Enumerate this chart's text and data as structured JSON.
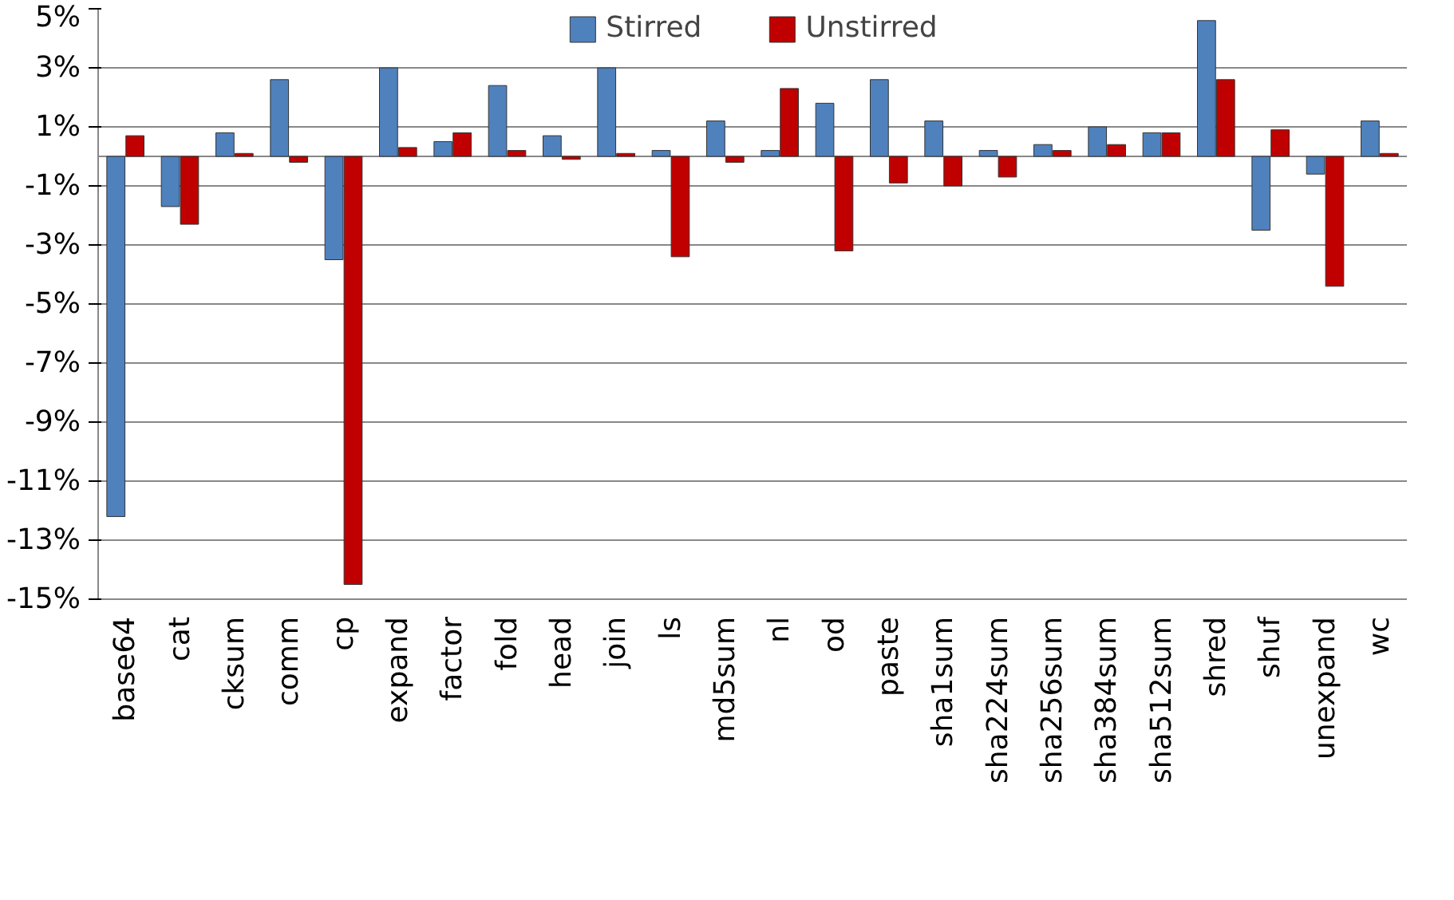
{
  "chart_data": {
    "type": "bar",
    "categories": [
      "base64",
      "cat",
      "cksum",
      "comm",
      "cp",
      "expand",
      "factor",
      "fold",
      "head",
      "join",
      "ls",
      "md5sum",
      "nl",
      "od",
      "paste",
      "sha1sum",
      "sha224sum",
      "sha256sum",
      "sha384sum",
      "sha512sum",
      "shred",
      "shuf",
      "unexpand",
      "wc"
    ],
    "series": [
      {
        "name": "Stirred",
        "color": "#4f81bd",
        "values": [
          -12.2,
          -1.7,
          0.8,
          2.6,
          -3.5,
          3.0,
          0.5,
          2.4,
          0.7,
          3.0,
          0.2,
          1.2,
          0.2,
          1.8,
          2.6,
          1.2,
          0.2,
          0.4,
          1.0,
          0.8,
          4.6,
          -2.5,
          -0.6,
          1.2
        ]
      },
      {
        "name": "Unstirred",
        "color": "#c00000",
        "values": [
          0.7,
          -2.3,
          0.1,
          -0.2,
          -14.5,
          0.3,
          0.8,
          0.2,
          -0.1,
          0.1,
          -3.4,
          -0.2,
          2.3,
          -3.2,
          -0.9,
          -1.0,
          -0.7,
          0.2,
          0.4,
          0.8,
          2.6,
          0.9,
          -4.4,
          0.1
        ]
      }
    ],
    "ylim": [
      -15,
      5
    ],
    "yticks": [
      {
        "value": -15,
        "label": "-15%"
      },
      {
        "value": -13,
        "label": "-13%"
      },
      {
        "value": -11,
        "label": "-11%"
      },
      {
        "value": -9,
        "label": "-9%"
      },
      {
        "value": -7,
        "label": "-7%"
      },
      {
        "value": -5,
        "label": "-5%"
      },
      {
        "value": -3,
        "label": "-3%"
      },
      {
        "value": -1,
        "label": "-1%"
      },
      {
        "value": 1,
        "label": "1%"
      },
      {
        "value": 3,
        "label": "3%"
      },
      {
        "value": 5,
        "label": "5%"
      }
    ],
    "grid": "y",
    "legend": "top"
  }
}
